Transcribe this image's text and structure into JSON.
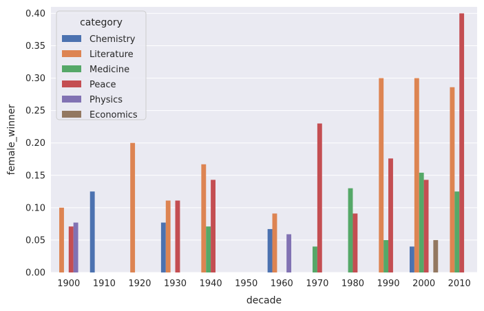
{
  "chart_data": {
    "type": "bar",
    "title": "",
    "xlabel": "decade",
    "ylabel": "female_winner",
    "ylim": [
      0,
      0.41
    ],
    "yticks": [
      "0.00",
      "0.05",
      "0.10",
      "0.15",
      "0.20",
      "0.25",
      "0.30",
      "0.35",
      "0.40"
    ],
    "grid": true,
    "legend_title": "category",
    "legend_position": "top-left",
    "categories": [
      "1900",
      "1910",
      "1920",
      "1930",
      "1940",
      "1950",
      "1960",
      "1970",
      "1980",
      "1990",
      "2000",
      "2010"
    ],
    "series": [
      {
        "name": "Chemistry",
        "color": "#4c72b0",
        "values": [
          0,
          0.125,
          0,
          0.077,
          0,
          0,
          0.067,
          0,
          0,
          0,
          0.04,
          0
        ]
      },
      {
        "name": "Literature",
        "color": "#dd8452",
        "values": [
          0.1,
          0,
          0.2,
          0.111,
          0.167,
          0,
          0.091,
          0,
          0,
          0.3,
          0.3,
          0.286
        ]
      },
      {
        "name": "Medicine",
        "color": "#55a868",
        "values": [
          0,
          0,
          0,
          0,
          0.071,
          0,
          0,
          0.04,
          0.13,
          0.05,
          0.154,
          0.125
        ]
      },
      {
        "name": "Peace",
        "color": "#c44e52",
        "values": [
          0.071,
          0,
          0,
          0.111,
          0.143,
          0,
          0,
          0.23,
          0.091,
          0.176,
          0.143,
          0.4
        ]
      },
      {
        "name": "Physics",
        "color": "#8172b3",
        "values": [
          0.077,
          0,
          0,
          0,
          0,
          0,
          0.059,
          0,
          0,
          0,
          0,
          0
        ]
      },
      {
        "name": "Economics",
        "color": "#937860",
        "values": [
          0,
          0,
          0,
          0,
          0,
          0,
          0,
          0,
          0,
          0,
          0.05,
          0
        ]
      }
    ]
  },
  "colors": {
    "plot_background": "#eaeaf2",
    "grid": "#ffffff",
    "text": "#262626"
  }
}
